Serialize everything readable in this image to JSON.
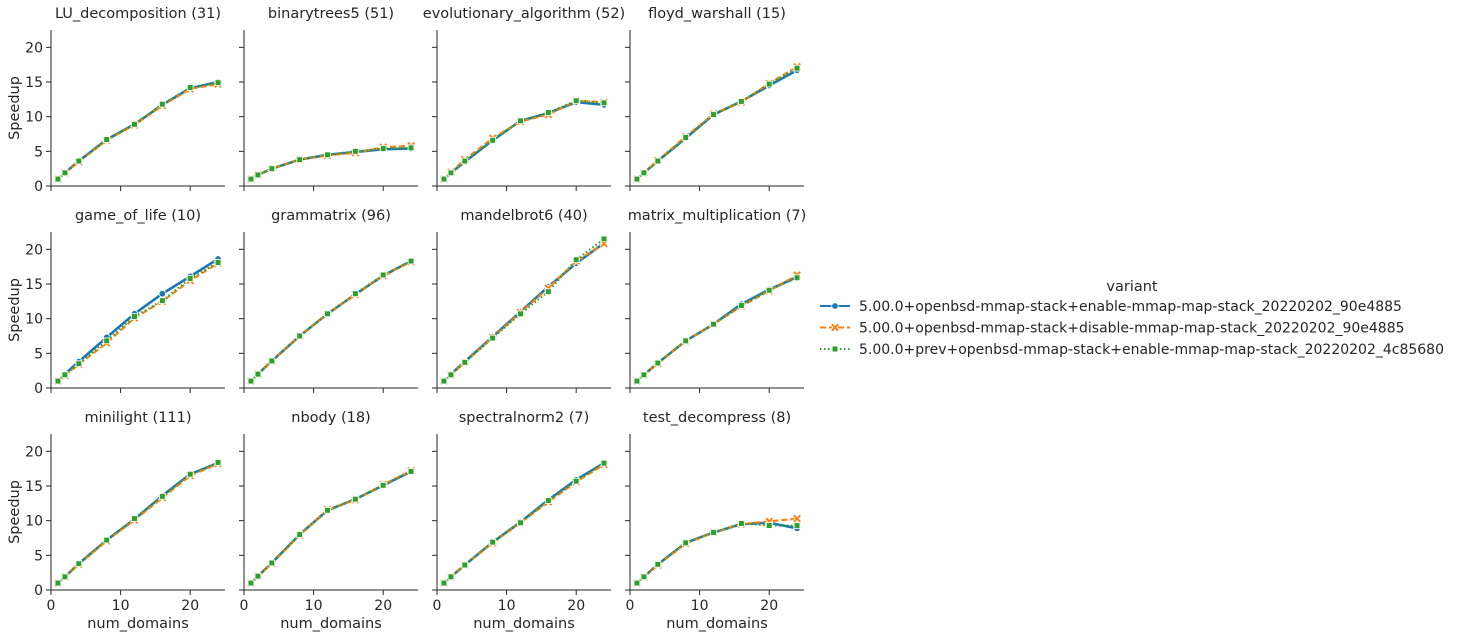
{
  "chart_data": {
    "type": "line",
    "xlabel": "num_domains",
    "ylabel": "Speedup",
    "xlim": [
      0,
      25
    ],
    "ylim": [
      0,
      22.5
    ],
    "xticks": [
      0,
      10,
      20
    ],
    "yticks": [
      0,
      5,
      10,
      15,
      20
    ],
    "x": [
      1,
      2,
      4,
      8,
      12,
      16,
      20,
      24
    ],
    "grid": false,
    "legend": {
      "title": "variant",
      "placement": "right",
      "entries": [
        {
          "name": "5.00.0+openbsd-mmap-stack+enable-mmap-map-stack_20220202_90e4885",
          "color": "#1f77b4",
          "marker": "circle",
          "dash": "solid"
        },
        {
          "name": "5.00.0+openbsd-mmap-stack+disable-mmap-map-stack_20220202_90e4885",
          "color": "#ff7f0e",
          "marker": "x",
          "dash": "dashed"
        },
        {
          "name": "5.00.0+prev+openbsd-mmap-stack+enable-mmap-map-stack_20220202_4c85680",
          "color": "#2ca02c",
          "marker": "square",
          "dash": "dotted"
        }
      ]
    },
    "panels": [
      {
        "title": "LU_decomposition (31)",
        "series": [
          [
            1,
            1.9,
            3.6,
            6.7,
            8.9,
            11.7,
            14.1,
            15.0
          ],
          [
            1,
            1.9,
            3.5,
            6.6,
            8.8,
            11.6,
            14.0,
            14.7
          ],
          [
            1,
            1.9,
            3.6,
            6.7,
            8.9,
            11.8,
            14.2,
            14.9
          ]
        ]
      },
      {
        "title": "binarytrees5 (51)",
        "series": [
          [
            1,
            1.6,
            2.5,
            3.8,
            4.5,
            4.9,
            5.3,
            5.4
          ],
          [
            1,
            1.6,
            2.5,
            3.8,
            4.4,
            4.8,
            5.6,
            5.8
          ],
          [
            1,
            1.6,
            2.5,
            3.8,
            4.5,
            5.0,
            5.4,
            5.5
          ]
        ]
      },
      {
        "title": "evolutionary_algorithm (52)",
        "series": [
          [
            1,
            1.9,
            3.5,
            6.6,
            9.4,
            10.5,
            12.1,
            11.7
          ],
          [
            1,
            2.0,
            3.8,
            6.9,
            9.3,
            10.3,
            12.3,
            12.1
          ],
          [
            1,
            1.9,
            3.6,
            6.6,
            9.4,
            10.6,
            12.3,
            12.0
          ]
        ]
      },
      {
        "title": "floyd_warshall (15)",
        "series": [
          [
            1,
            1.9,
            3.6,
            6.9,
            10.3,
            12.2,
            14.5,
            16.7
          ],
          [
            1,
            1.9,
            3.7,
            7.1,
            10.4,
            12.1,
            14.8,
            17.2
          ],
          [
            1,
            1.9,
            3.6,
            7.0,
            10.3,
            12.2,
            14.7,
            17.0
          ]
        ]
      },
      {
        "title": "game_of_life (10)",
        "series": [
          [
            1,
            2.0,
            3.8,
            7.3,
            10.7,
            13.6,
            16.1,
            18.6
          ],
          [
            1,
            1.8,
            3.4,
            6.5,
            10.1,
            12.5,
            15.5,
            18.0
          ],
          [
            1,
            1.9,
            3.5,
            6.8,
            10.3,
            12.6,
            15.8,
            18.1
          ]
        ]
      },
      {
        "title": "grammatrix (96)",
        "series": [
          [
            1,
            2.0,
            3.9,
            7.5,
            10.7,
            13.5,
            16.2,
            18.3
          ],
          [
            1,
            2.0,
            3.9,
            7.5,
            10.7,
            13.5,
            16.2,
            18.2
          ],
          [
            1,
            2.0,
            3.9,
            7.5,
            10.7,
            13.6,
            16.3,
            18.3
          ]
        ]
      },
      {
        "title": "mandelbrot6 (40)",
        "series": [
          [
            1,
            2.0,
            3.8,
            7.4,
            11.0,
            14.6,
            18.0,
            20.9
          ],
          [
            1,
            1.9,
            3.7,
            7.3,
            10.9,
            14.4,
            18.3,
            20.8
          ],
          [
            1,
            1.9,
            3.7,
            7.2,
            10.7,
            13.9,
            18.5,
            21.5
          ]
        ]
      },
      {
        "title": "matrix_multiplication (7)",
        "series": [
          [
            1,
            1.9,
            3.6,
            6.8,
            9.2,
            12.1,
            14.2,
            16.0
          ],
          [
            1,
            1.9,
            3.5,
            6.8,
            9.2,
            11.8,
            14.0,
            16.3
          ],
          [
            1,
            1.9,
            3.6,
            6.8,
            9.2,
            11.9,
            14.1,
            15.9
          ]
        ]
      },
      {
        "title": "minilight (111)",
        "series": [
          [
            1,
            1.9,
            3.8,
            7.2,
            10.2,
            13.6,
            16.7,
            18.3
          ],
          [
            1,
            1.9,
            3.7,
            7.1,
            10.1,
            13.3,
            16.5,
            18.2
          ],
          [
            1,
            1.9,
            3.8,
            7.2,
            10.3,
            13.5,
            16.7,
            18.4
          ]
        ]
      },
      {
        "title": "nbody (18)",
        "series": [
          [
            1,
            2.0,
            3.9,
            8.0,
            11.5,
            13.1,
            15.1,
            17.1
          ],
          [
            1,
            2.0,
            3.8,
            7.9,
            11.6,
            13.0,
            15.2,
            17.2
          ],
          [
            1,
            2.0,
            3.9,
            8.0,
            11.5,
            13.1,
            15.1,
            17.1
          ]
        ]
      },
      {
        "title": "spectralnorm2 (7)",
        "series": [
          [
            1,
            1.9,
            3.6,
            6.9,
            9.8,
            13.0,
            15.9,
            18.3
          ],
          [
            1,
            1.9,
            3.6,
            6.8,
            9.7,
            12.7,
            15.6,
            18.1
          ],
          [
            1,
            1.9,
            3.6,
            6.9,
            9.7,
            12.9,
            15.7,
            18.3
          ]
        ]
      },
      {
        "title": "test_decompress (8)",
        "series": [
          [
            1,
            1.9,
            3.7,
            6.8,
            8.3,
            9.5,
            9.7,
            8.9
          ],
          [
            1,
            1.9,
            3.6,
            6.7,
            8.3,
            9.5,
            9.9,
            10.3
          ],
          [
            1,
            1.9,
            3.7,
            6.8,
            8.3,
            9.6,
            9.3,
            9.3
          ]
        ]
      }
    ]
  }
}
